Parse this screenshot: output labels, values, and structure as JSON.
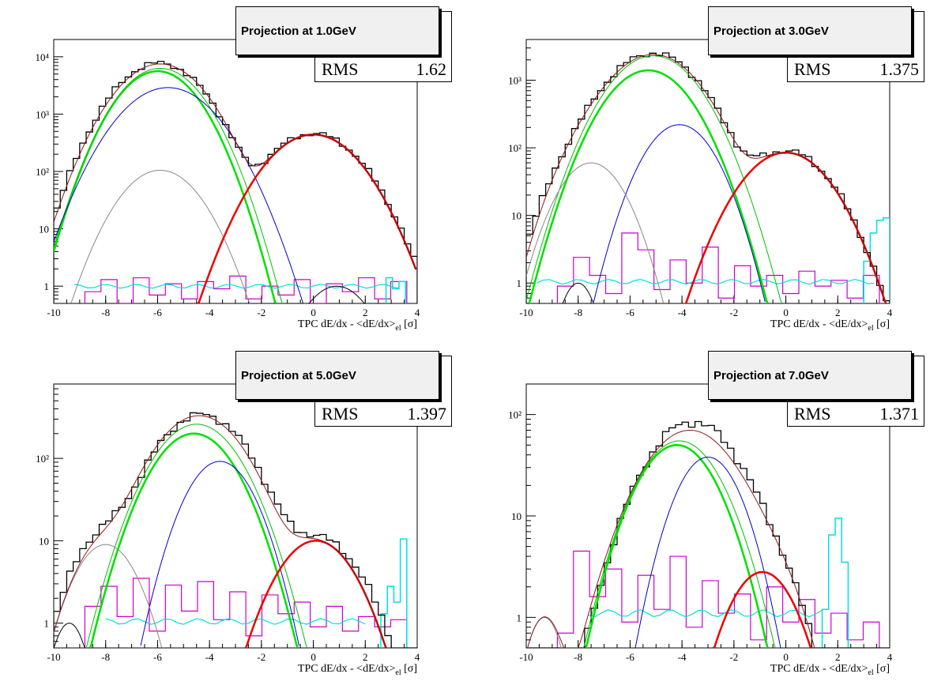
{
  "colors": {
    "data": "#000000",
    "total_fit": "#8b1a1a",
    "pion": "#00e000",
    "pion_thin": "#00c000",
    "kaon": "#0000cc",
    "proton": "#888888",
    "electron": "#ee0000",
    "other": "#cc00cc",
    "ratio": "#00e0e0"
  },
  "chart_data": [
    {
      "type": "line",
      "title": "Projection at 1.0GeV",
      "stats_label": "RMS",
      "stats_value": "1.62",
      "xlabel": "TPC dE/dx - <dE/dx>|el [σ]",
      "xlabel_main": "TPC dE/dx - <dE/dx>",
      "xlabel_sub": "el",
      "xlabel_unit": "[σ]",
      "xlim": [
        -10,
        4
      ],
      "ylim": [
        0.5,
        20000
      ],
      "yscale": "log",
      "xticks": [
        "-10",
        "-8",
        "-6",
        "-4",
        "-2",
        "0",
        "2",
        "4"
      ],
      "yticks": [
        {
          "v": 1,
          "label": "1"
        },
        {
          "v": 10,
          "label": "10"
        },
        {
          "v": 100,
          "label": "10²"
        },
        {
          "v": 1000,
          "label": "10³"
        },
        {
          "v": 10000,
          "label": "10⁴"
        }
      ],
      "gaussians": [
        {
          "series": "pion",
          "amp": 5600,
          "mu": -6.0,
          "sigma": 1.05,
          "width": 2.5
        },
        {
          "series": "pion_thin",
          "amp": 6300,
          "mu": -5.9,
          "sigma": 1.08,
          "width": 1
        },
        {
          "series": "kaon",
          "amp": 2900,
          "mu": -5.6,
          "sigma": 1.25,
          "width": 1
        },
        {
          "series": "proton",
          "amp": 105,
          "mu": -5.9,
          "sigma": 1.05,
          "width": 1
        },
        {
          "series": "electron",
          "amp": 440,
          "mu": 0.0,
          "sigma": 1.2,
          "width": 2.5
        },
        {
          "series": "data_fit",
          "amp": 1.0,
          "mu": 0.9,
          "sigma": 0.9,
          "width": 1
        }
      ],
      "total_fit": {
        "components": [
          [
            7500,
            -5.9,
            1.15
          ],
          [
            440,
            0.0,
            1.2
          ]
        ]
      },
      "data_hist": {
        "components": [
          [
            7800,
            -5.95,
            1.15
          ],
          [
            460,
            0.0,
            1.22
          ]
        ],
        "min": 0.5
      },
      "other_hist": {
        "noise": [
          0.8,
          1.3,
          0.5,
          1.4,
          0.7,
          1.1,
          0.6,
          1.2,
          0.9,
          1.5,
          0.6,
          1.0,
          0.7,
          1.3,
          0.5,
          1.1,
          0.8,
          1.4,
          0.6,
          1.2
        ],
        "min": 0.5
      },
      "ratio_curve": {
        "value": 1.0,
        "from": -9.2,
        "to": 3.4
      },
      "ratio_hist": {
        "noise": [
          1.4,
          0.9,
          1.2
        ],
        "from": 2.8
      }
    },
    {
      "type": "line",
      "title": "Projection at 3.0GeV",
      "stats_label": "RMS",
      "stats_value": "1.375",
      "xlabel": "TPC dE/dx - <dE/dx>|el [σ]",
      "xlabel_main": "TPC dE/dx - <dE/dx>",
      "xlabel_sub": "el",
      "xlabel_unit": "[σ]",
      "xlim": [
        -10,
        4
      ],
      "ylim": [
        0.5,
        4000
      ],
      "yscale": "log",
      "xticks": [
        "-10",
        "-8",
        "-6",
        "-4",
        "-2",
        "0",
        "2",
        "4"
      ],
      "yticks": [
        {
          "v": 1,
          "label": "1"
        },
        {
          "v": 10,
          "label": "10"
        },
        {
          "v": 100,
          "label": "10²"
        },
        {
          "v": 1000,
          "label": "10³"
        }
      ],
      "gaussians": [
        {
          "series": "pion",
          "amp": 1400,
          "mu": -5.3,
          "sigma": 1.15,
          "width": 2.5
        },
        {
          "series": "pion_thin",
          "amp": 2300,
          "mu": -5.1,
          "sigma": 1.2,
          "width": 1
        },
        {
          "series": "kaon",
          "amp": 220,
          "mu": -4.1,
          "sigma": 0.95,
          "width": 1
        },
        {
          "series": "proton",
          "amp": 60,
          "mu": -7.5,
          "sigma": 0.9,
          "width": 1
        },
        {
          "series": "data_fit",
          "amp": 1.0,
          "mu": -8.0,
          "sigma": 0.5,
          "width": 1
        },
        {
          "series": "electron",
          "amp": 85,
          "mu": 0.0,
          "sigma": 1.2,
          "width": 2.5
        }
      ],
      "total_fit": {
        "components": [
          [
            2400,
            -5.1,
            1.25
          ],
          [
            60,
            -7.5,
            0.9
          ],
          [
            85,
            0.0,
            1.2
          ]
        ]
      },
      "data_hist": {
        "components": [
          [
            2500,
            -5.1,
            1.25
          ],
          [
            60,
            -7.5,
            1.0
          ],
          [
            90,
            0.0,
            1.2
          ]
        ],
        "min": 0.5
      },
      "other_hist": {
        "noise": [
          0.9,
          2.4,
          1.3,
          0.7,
          5.5,
          3.1,
          0.8,
          2.2,
          1.0,
          3.4,
          0.6,
          1.8,
          0.9,
          1.3,
          0.7,
          1.5,
          0.9,
          1.1,
          0.6,
          1.3
        ],
        "min": 0.5
      },
      "ratio_curve": {
        "value": 1.05,
        "from": -9.6,
        "to": 3.6
      },
      "ratio_hist": {
        "noise": [
          2.1,
          5.5,
          8.5,
          9.2
        ],
        "from": 3.0
      }
    },
    {
      "type": "line",
      "title": "Projection at 5.0GeV",
      "stats_label": "RMS",
      "stats_value": "1.397",
      "xlabel": "TPC dE/dx - <dE/dx>|el [σ]",
      "xlabel_main": "TPC dE/dx - <dE/dx>",
      "xlabel_sub": "el",
      "xlabel_unit": "[σ]",
      "xlim": [
        -10,
        4
      ],
      "ylim": [
        0.5,
        800
      ],
      "yscale": "log",
      "xticks": [
        "-10",
        "-8",
        "-6",
        "-4",
        "-2",
        "0",
        "2",
        "4"
      ],
      "yticks": [
        {
          "v": 1,
          "label": "1"
        },
        {
          "v": 10,
          "label": "10"
        },
        {
          "v": 100,
          "label": "10²"
        }
      ],
      "gaussians": [
        {
          "series": "pion",
          "amp": 200,
          "mu": -4.6,
          "sigma": 1.15,
          "width": 2.5
        },
        {
          "series": "pion_thin",
          "amp": 260,
          "mu": -4.5,
          "sigma": 1.2,
          "width": 1
        },
        {
          "series": "kaon",
          "amp": 92,
          "mu": -3.6,
          "sigma": 0.95,
          "width": 1
        },
        {
          "series": "proton",
          "amp": 9,
          "mu": -8.0,
          "sigma": 0.9,
          "width": 1
        },
        {
          "series": "data_fit",
          "amp": 1.0,
          "mu": -9.4,
          "sigma": 0.5,
          "width": 1
        },
        {
          "series": "electron",
          "amp": 10,
          "mu": 0.1,
          "sigma": 1.1,
          "width": 2.5
        }
      ],
      "total_fit": {
        "components": [
          [
            330,
            -4.4,
            1.25
          ],
          [
            9,
            -8.0,
            0.9
          ],
          [
            10,
            0.1,
            1.1
          ]
        ]
      },
      "data_hist": {
        "components": [
          [
            340,
            -4.3,
            1.25
          ],
          [
            12,
            -8.0,
            0.9
          ],
          [
            11,
            0.1,
            1.2
          ]
        ],
        "min": 0.5
      },
      "other_hist": {
        "noise": [
          1.6,
          2.8,
          1.2,
          3.5,
          0.8,
          2.9,
          1.4,
          3.2,
          1.1,
          2.4,
          0.7,
          2.2,
          1.3,
          1.8,
          0.9,
          1.6,
          0.8,
          1.2,
          0.9,
          1.1
        ],
        "min": 0.5
      },
      "ratio_curve": {
        "value": 1.05,
        "from": -8.0,
        "to": 2.0
      },
      "ratio_hist": {
        "noise": [
          1.3,
          2.8,
          1.8,
          10.5
        ],
        "from": 2.6
      }
    },
    {
      "type": "line",
      "title": "Projection at 7.0GeV",
      "stats_label": "RMS",
      "stats_value": "1.371",
      "xlabel": "TPC dE/dx - <dE/dx>|el [σ]",
      "xlabel_main": "TPC dE/dx - <dE/dx>",
      "xlabel_sub": "el",
      "xlabel_unit": "[σ]",
      "xlim": [
        -10,
        4
      ],
      "ylim": [
        0.5,
        200
      ],
      "yscale": "log",
      "xticks": [
        "-10",
        "-8",
        "-6",
        "-4",
        "-2",
        "0",
        "2",
        "4"
      ],
      "yticks": [
        {
          "v": 1,
          "label": "1"
        },
        {
          "v": 10,
          "label": "10"
        },
        {
          "v": 100,
          "label": "10²"
        }
      ],
      "gaussians": [
        {
          "series": "pion",
          "amp": 50,
          "mu": -4.2,
          "sigma": 1.15,
          "width": 2.5
        },
        {
          "series": "pion_thin",
          "amp": 55,
          "mu": -4.1,
          "sigma": 1.2,
          "width": 1
        },
        {
          "series": "kaon",
          "amp": 38,
          "mu": -3.0,
          "sigma": 0.95,
          "width": 1
        },
        {
          "series": "proton",
          "amp": 1.0,
          "mu": -9.3,
          "sigma": 0.55,
          "width": 1
        },
        {
          "series": "electron",
          "amp": 2.8,
          "mu": -0.9,
          "sigma": 1.0,
          "width": 2.5
        }
      ],
      "total_fit": {
        "components": [
          [
            70,
            -3.7,
            1.35
          ],
          [
            1.0,
            -9.3,
            0.55
          ],
          [
            2.8,
            -0.9,
            1.0
          ]
        ]
      },
      "data_hist": {
        "components": [
          [
            85,
            -3.6,
            1.3
          ],
          [
            2.8,
            -0.9,
            1.0
          ]
        ],
        "min": 0.5
      },
      "other_hist": {
        "noise": [
          0.7,
          4.5,
          1.6,
          3.0,
          0.9,
          2.6,
          1.2,
          4.0,
          0.8,
          2.3,
          1.1,
          1.7,
          0.6,
          2.0,
          0.9,
          1.5,
          0.7,
          1.1,
          0.6,
          0.9
        ],
        "min": 0.5
      },
      "ratio_curve": {
        "value": 1.1,
        "from": -7.6,
        "to": 1.5
      },
      "ratio_hist": {
        "noise": [
          1.2,
          6.5,
          9.5,
          3.5
        ],
        "from": 1.4
      }
    }
  ]
}
